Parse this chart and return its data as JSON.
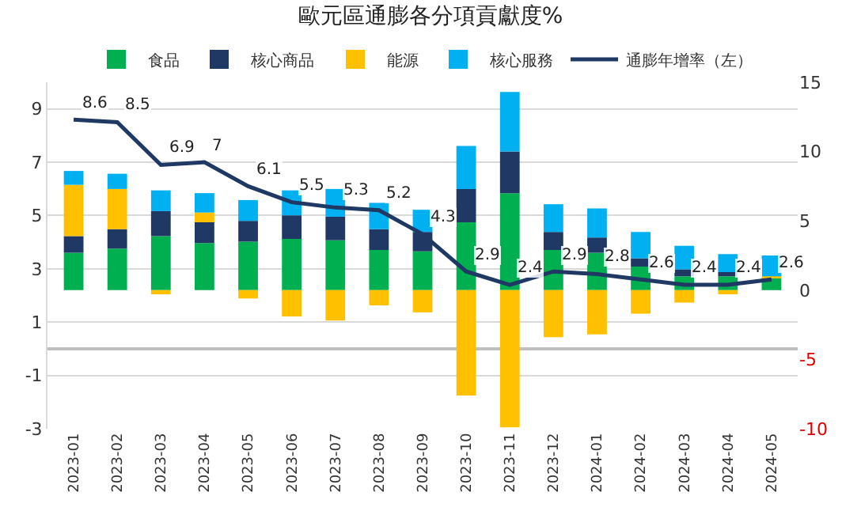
{
  "chart_data": {
    "type": "bar",
    "title": "歐元區通膨各分項貢獻度%",
    "stacked": true,
    "categories": [
      "2023-01",
      "2023-02",
      "2023-03",
      "2023-04",
      "2023-05",
      "2023-06",
      "2023-07",
      "2023-08",
      "2023-09",
      "2023-10",
      "2023-11",
      "2023-12",
      "2024-01",
      "2024-02",
      "2024-03",
      "2024-04",
      "2024-05"
    ],
    "series": [
      {
        "name": "食品",
        "color": "#00b050",
        "axis": "y2",
        "values": [
          2.7,
          3.0,
          3.9,
          3.4,
          3.5,
          3.7,
          3.6,
          2.9,
          2.8,
          4.9,
          7.0,
          2.9,
          2.7,
          1.7,
          1.0,
          1.0,
          0.9
        ]
      },
      {
        "name": "核心商品",
        "color": "#1f3864",
        "axis": "y2",
        "values": [
          1.2,
          1.4,
          1.8,
          1.5,
          1.5,
          1.7,
          1.7,
          1.5,
          1.4,
          2.4,
          3.0,
          1.3,
          1.1,
          0.6,
          0.5,
          0.3,
          null
        ]
      },
      {
        "name": "能源",
        "color": "#ffc000",
        "axis": "y2",
        "values": [
          3.7,
          2.9,
          -0.3,
          0.7,
          -0.6,
          -1.9,
          -2.2,
          -1.1,
          -1.6,
          -7.6,
          -9.9,
          -3.4,
          -3.2,
          -1.7,
          -0.9,
          -0.3,
          0.1
        ]
      },
      {
        "name": "核心服務",
        "color": "#00b0f0",
        "axis": "y2",
        "values": [
          1.0,
          1.1,
          1.5,
          1.4,
          1.5,
          1.8,
          2.0,
          1.9,
          1.6,
          3.1,
          4.3,
          2.0,
          2.1,
          1.9,
          1.7,
          1.3,
          1.5
        ]
      },
      {
        "name": "通膨年增率（左）",
        "type": "line",
        "color": "#1f3864",
        "axis": "y",
        "data_labels": true,
        "values": [
          8.6,
          8.5,
          6.9,
          7,
          6.1,
          5.5,
          5.3,
          5.2,
          4.3,
          2.9,
          2.4,
          2.9,
          2.8,
          2.6,
          2.4,
          2.4,
          2.6
        ]
      }
    ],
    "ylim": [
      -3,
      10
    ],
    "yticks": [
      -3,
      -1,
      1,
      3,
      5,
      7,
      9
    ],
    "y2lim": [
      -10,
      15
    ],
    "y2ticks": [
      -10,
      -5,
      0,
      5,
      10,
      15
    ],
    "grid": "y",
    "legend": "top",
    "marker": "none",
    "line_style": "solid"
  }
}
